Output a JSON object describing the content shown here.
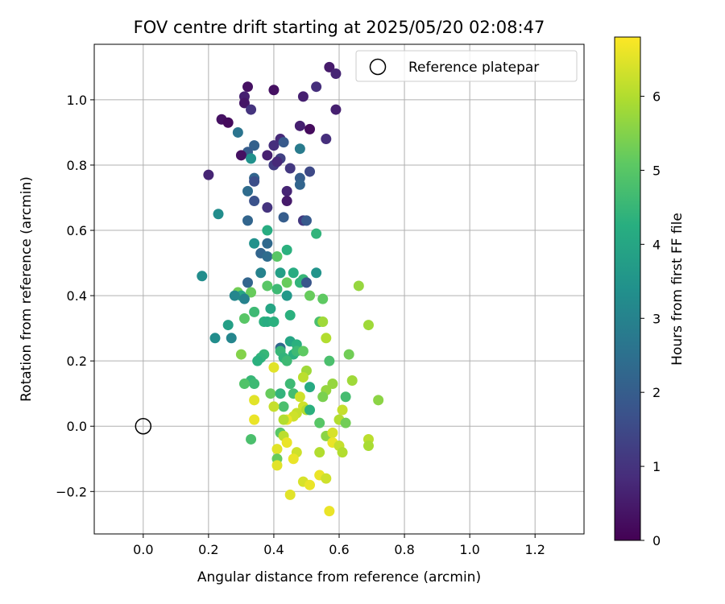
{
  "chart_data": {
    "type": "scatter",
    "title": "FOV centre drift starting at 2025/05/20 02:08:47",
    "xlabel": "Angular distance from reference (arcmin)",
    "ylabel": "Rotation from reference (arcmin)",
    "xlim": [
      -0.15,
      1.35
    ],
    "ylim": [
      -0.33,
      1.17
    ],
    "xticks": [
      "0.0",
      "0.2",
      "0.4",
      "0.6",
      "0.8",
      "1.0",
      "1.2"
    ],
    "yticks": [
      "−0.2",
      "0.0",
      "0.2",
      "0.4",
      "0.6",
      "0.8",
      "1.0"
    ],
    "grid": true,
    "colormap": "viridis",
    "colorbar": {
      "label": "Hours from first FF file",
      "range": [
        0,
        6.8
      ],
      "ticks": [
        "0",
        "1",
        "2",
        "3",
        "4",
        "5",
        "6"
      ]
    },
    "legend": {
      "position": "top-right",
      "entries": [
        "Reference platepar"
      ]
    },
    "reference_point": {
      "x": 0.0,
      "y": 0.0
    },
    "points": [
      {
        "x": 0.32,
        "y": 1.04,
        "h": 0.3
      },
      {
        "x": 0.4,
        "y": 1.03,
        "h": 0.3
      },
      {
        "x": 0.57,
        "y": 1.1,
        "h": 0.5
      },
      {
        "x": 0.59,
        "y": 1.08,
        "h": 0.7
      },
      {
        "x": 0.31,
        "y": 1.01,
        "h": 0.6
      },
      {
        "x": 0.31,
        "y": 0.99,
        "h": 0.4
      },
      {
        "x": 0.33,
        "y": 0.97,
        "h": 1.0
      },
      {
        "x": 0.53,
        "y": 1.04,
        "h": 0.9
      },
      {
        "x": 0.49,
        "y": 1.01,
        "h": 0.6
      },
      {
        "x": 0.59,
        "y": 0.97,
        "h": 0.6
      },
      {
        "x": 0.24,
        "y": 0.94,
        "h": 0.3
      },
      {
        "x": 0.26,
        "y": 0.93,
        "h": 0.2
      },
      {
        "x": 0.29,
        "y": 0.9,
        "h": 2.6
      },
      {
        "x": 0.48,
        "y": 0.92,
        "h": 0.6
      },
      {
        "x": 0.51,
        "y": 0.91,
        "h": 0.2
      },
      {
        "x": 0.42,
        "y": 0.88,
        "h": 0.8
      },
      {
        "x": 0.56,
        "y": 0.88,
        "h": 0.9
      },
      {
        "x": 0.4,
        "y": 0.86,
        "h": 0.9
      },
      {
        "x": 0.43,
        "y": 0.87,
        "h": 1.9
      },
      {
        "x": 0.34,
        "y": 0.86,
        "h": 2.1
      },
      {
        "x": 0.32,
        "y": 0.84,
        "h": 2.0
      },
      {
        "x": 0.3,
        "y": 0.83,
        "h": 0.3
      },
      {
        "x": 0.48,
        "y": 0.85,
        "h": 2.8
      },
      {
        "x": 0.38,
        "y": 0.83,
        "h": 0.6
      },
      {
        "x": 0.42,
        "y": 0.82,
        "h": 1.3
      },
      {
        "x": 0.33,
        "y": 0.82,
        "h": 3.4
      },
      {
        "x": 0.4,
        "y": 0.8,
        "h": 1.2
      },
      {
        "x": 0.41,
        "y": 0.81,
        "h": 0.8
      },
      {
        "x": 0.45,
        "y": 0.79,
        "h": 1.1
      },
      {
        "x": 0.51,
        "y": 0.78,
        "h": 1.5
      },
      {
        "x": 0.2,
        "y": 0.77,
        "h": 0.7
      },
      {
        "x": 0.34,
        "y": 0.76,
        "h": 2.2
      },
      {
        "x": 0.34,
        "y": 0.75,
        "h": 1.6
      },
      {
        "x": 0.48,
        "y": 0.76,
        "h": 2.0
      },
      {
        "x": 0.48,
        "y": 0.74,
        "h": 2.2
      },
      {
        "x": 0.44,
        "y": 0.72,
        "h": 0.7
      },
      {
        "x": 0.32,
        "y": 0.72,
        "h": 2.4
      },
      {
        "x": 0.44,
        "y": 0.69,
        "h": 0.5
      },
      {
        "x": 0.34,
        "y": 0.69,
        "h": 1.7
      },
      {
        "x": 0.38,
        "y": 0.67,
        "h": 1.0
      },
      {
        "x": 0.23,
        "y": 0.65,
        "h": 3.3
      },
      {
        "x": 0.49,
        "y": 0.63,
        "h": 1.1
      },
      {
        "x": 0.5,
        "y": 0.63,
        "h": 1.9
      },
      {
        "x": 0.43,
        "y": 0.64,
        "h": 2.0
      },
      {
        "x": 0.32,
        "y": 0.63,
        "h": 2.2
      },
      {
        "x": 0.38,
        "y": 0.6,
        "h": 4.2
      },
      {
        "x": 0.53,
        "y": 0.59,
        "h": 4.4
      },
      {
        "x": 0.38,
        "y": 0.56,
        "h": 2.3
      },
      {
        "x": 0.34,
        "y": 0.56,
        "h": 3.4
      },
      {
        "x": 0.44,
        "y": 0.54,
        "h": 4.3
      },
      {
        "x": 0.36,
        "y": 0.53,
        "h": 2.2
      },
      {
        "x": 0.38,
        "y": 0.52,
        "h": 2.4
      },
      {
        "x": 0.41,
        "y": 0.52,
        "h": 5.0
      },
      {
        "x": 0.18,
        "y": 0.46,
        "h": 3.3
      },
      {
        "x": 0.36,
        "y": 0.47,
        "h": 3.0
      },
      {
        "x": 0.42,
        "y": 0.47,
        "h": 3.8
      },
      {
        "x": 0.46,
        "y": 0.47,
        "h": 4.2
      },
      {
        "x": 0.53,
        "y": 0.47,
        "h": 3.5
      },
      {
        "x": 0.49,
        "y": 0.45,
        "h": 4.5
      },
      {
        "x": 0.44,
        "y": 0.44,
        "h": 5.2
      },
      {
        "x": 0.48,
        "y": 0.44,
        "h": 4.4
      },
      {
        "x": 0.5,
        "y": 0.44,
        "h": 1.8
      },
      {
        "x": 0.32,
        "y": 0.44,
        "h": 2.2
      },
      {
        "x": 0.38,
        "y": 0.43,
        "h": 5.0
      },
      {
        "x": 0.41,
        "y": 0.42,
        "h": 4.6
      },
      {
        "x": 0.66,
        "y": 0.43,
        "h": 5.7
      },
      {
        "x": 0.29,
        "y": 0.41,
        "h": 5.3
      },
      {
        "x": 0.3,
        "y": 0.4,
        "h": 4.0
      },
      {
        "x": 0.33,
        "y": 0.41,
        "h": 5.2
      },
      {
        "x": 0.28,
        "y": 0.4,
        "h": 3.1
      },
      {
        "x": 0.31,
        "y": 0.39,
        "h": 3.0
      },
      {
        "x": 0.44,
        "y": 0.4,
        "h": 3.6
      },
      {
        "x": 0.51,
        "y": 0.4,
        "h": 5.2
      },
      {
        "x": 0.55,
        "y": 0.39,
        "h": 5.1
      },
      {
        "x": 0.39,
        "y": 0.36,
        "h": 4.0
      },
      {
        "x": 0.34,
        "y": 0.35,
        "h": 4.6
      },
      {
        "x": 0.31,
        "y": 0.33,
        "h": 5.0
      },
      {
        "x": 0.45,
        "y": 0.34,
        "h": 4.3
      },
      {
        "x": 0.26,
        "y": 0.31,
        "h": 3.8
      },
      {
        "x": 0.37,
        "y": 0.32,
        "h": 4.3
      },
      {
        "x": 0.38,
        "y": 0.32,
        "h": 4.2
      },
      {
        "x": 0.4,
        "y": 0.32,
        "h": 4.3
      },
      {
        "x": 0.54,
        "y": 0.32,
        "h": 4.8
      },
      {
        "x": 0.55,
        "y": 0.32,
        "h": 5.8
      },
      {
        "x": 0.69,
        "y": 0.31,
        "h": 5.8
      },
      {
        "x": 0.22,
        "y": 0.27,
        "h": 3.3
      },
      {
        "x": 0.27,
        "y": 0.27,
        "h": 3.1
      },
      {
        "x": 0.56,
        "y": 0.27,
        "h": 6.0
      },
      {
        "x": 0.45,
        "y": 0.26,
        "h": 4.0
      },
      {
        "x": 0.47,
        "y": 0.25,
        "h": 4.3
      },
      {
        "x": 0.42,
        "y": 0.24,
        "h": 2.3
      },
      {
        "x": 0.42,
        "y": 0.23,
        "h": 4.5
      },
      {
        "x": 0.46,
        "y": 0.22,
        "h": 4.3
      },
      {
        "x": 0.47,
        "y": 0.23,
        "h": 4.6
      },
      {
        "x": 0.49,
        "y": 0.23,
        "h": 5.1
      },
      {
        "x": 0.37,
        "y": 0.22,
        "h": 4.5
      },
      {
        "x": 0.36,
        "y": 0.21,
        "h": 4.4
      },
      {
        "x": 0.3,
        "y": 0.22,
        "h": 5.5
      },
      {
        "x": 0.43,
        "y": 0.21,
        "h": 4.4
      },
      {
        "x": 0.35,
        "y": 0.2,
        "h": 4.3
      },
      {
        "x": 0.44,
        "y": 0.2,
        "h": 4.6
      },
      {
        "x": 0.57,
        "y": 0.2,
        "h": 4.8
      },
      {
        "x": 0.63,
        "y": 0.22,
        "h": 5.3
      },
      {
        "x": 0.4,
        "y": 0.18,
        "h": 6.5
      },
      {
        "x": 0.5,
        "y": 0.17,
        "h": 5.8
      },
      {
        "x": 0.49,
        "y": 0.15,
        "h": 6.1
      },
      {
        "x": 0.64,
        "y": 0.14,
        "h": 5.8
      },
      {
        "x": 0.33,
        "y": 0.14,
        "h": 4.5
      },
      {
        "x": 0.34,
        "y": 0.13,
        "h": 4.6
      },
      {
        "x": 0.31,
        "y": 0.13,
        "h": 4.9
      },
      {
        "x": 0.45,
        "y": 0.13,
        "h": 4.6
      },
      {
        "x": 0.51,
        "y": 0.12,
        "h": 4.1
      },
      {
        "x": 0.58,
        "y": 0.13,
        "h": 5.7
      },
      {
        "x": 0.56,
        "y": 0.11,
        "h": 5.7
      },
      {
        "x": 0.39,
        "y": 0.1,
        "h": 5.2
      },
      {
        "x": 0.42,
        "y": 0.1,
        "h": 4.4
      },
      {
        "x": 0.46,
        "y": 0.1,
        "h": 4.7
      },
      {
        "x": 0.48,
        "y": 0.09,
        "h": 6.3
      },
      {
        "x": 0.55,
        "y": 0.09,
        "h": 5.4
      },
      {
        "x": 0.62,
        "y": 0.09,
        "h": 4.7
      },
      {
        "x": 0.72,
        "y": 0.08,
        "h": 5.6
      },
      {
        "x": 0.34,
        "y": 0.08,
        "h": 6.5
      },
      {
        "x": 0.43,
        "y": 0.06,
        "h": 4.8
      },
      {
        "x": 0.4,
        "y": 0.06,
        "h": 6.2
      },
      {
        "x": 0.49,
        "y": 0.06,
        "h": 6.3
      },
      {
        "x": 0.5,
        "y": 0.05,
        "h": 6.0
      },
      {
        "x": 0.51,
        "y": 0.05,
        "h": 4.3
      },
      {
        "x": 0.47,
        "y": 0.04,
        "h": 6.2
      },
      {
        "x": 0.46,
        "y": 0.03,
        "h": 6.3
      },
      {
        "x": 0.44,
        "y": 0.02,
        "h": 6.6
      },
      {
        "x": 0.43,
        "y": 0.02,
        "h": 6.0
      },
      {
        "x": 0.34,
        "y": 0.02,
        "h": 6.6
      },
      {
        "x": 0.54,
        "y": 0.01,
        "h": 5.0
      },
      {
        "x": 0.6,
        "y": 0.02,
        "h": 6.0
      },
      {
        "x": 0.62,
        "y": 0.01,
        "h": 5.3
      },
      {
        "x": 0.61,
        "y": 0.05,
        "h": 6.2
      },
      {
        "x": 0.42,
        "y": -0.02,
        "h": 5.0
      },
      {
        "x": 0.43,
        "y": -0.03,
        "h": 6.1
      },
      {
        "x": 0.44,
        "y": -0.05,
        "h": 6.6
      },
      {
        "x": 0.33,
        "y": -0.04,
        "h": 4.8
      },
      {
        "x": 0.56,
        "y": -0.03,
        "h": 5.6
      },
      {
        "x": 0.58,
        "y": -0.02,
        "h": 6.4
      },
      {
        "x": 0.58,
        "y": -0.05,
        "h": 6.6
      },
      {
        "x": 0.6,
        "y": -0.06,
        "h": 6.2
      },
      {
        "x": 0.69,
        "y": -0.04,
        "h": 6.1
      },
      {
        "x": 0.69,
        "y": -0.06,
        "h": 5.9
      },
      {
        "x": 0.61,
        "y": -0.08,
        "h": 6.0
      },
      {
        "x": 0.41,
        "y": -0.07,
        "h": 6.5
      },
      {
        "x": 0.47,
        "y": -0.08,
        "h": 6.3
      },
      {
        "x": 0.54,
        "y": -0.08,
        "h": 6.0
      },
      {
        "x": 0.41,
        "y": -0.1,
        "h": 5.2
      },
      {
        "x": 0.41,
        "y": -0.12,
        "h": 6.5
      },
      {
        "x": 0.46,
        "y": -0.1,
        "h": 6.6
      },
      {
        "x": 0.54,
        "y": -0.15,
        "h": 6.6
      },
      {
        "x": 0.49,
        "y": -0.17,
        "h": 6.4
      },
      {
        "x": 0.51,
        "y": -0.18,
        "h": 6.6
      },
      {
        "x": 0.56,
        "y": -0.16,
        "h": 6.3
      },
      {
        "x": 0.45,
        "y": -0.21,
        "h": 6.5
      },
      {
        "x": 0.57,
        "y": -0.26,
        "h": 6.6
      }
    ]
  }
}
